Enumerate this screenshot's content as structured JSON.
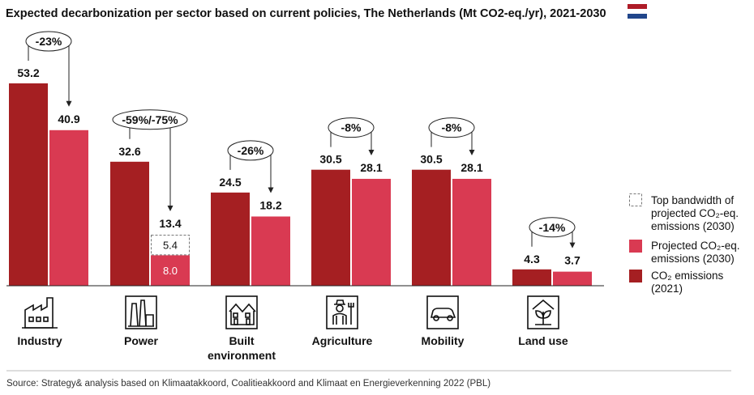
{
  "colors": {
    "current": "#a51f22",
    "projected": "#d93a52",
    "bandwidth_border": "#777777",
    "icon": "#111111",
    "flag_red": "#ae1c28",
    "flag_white": "#ffffff",
    "flag_blue": "#21468b"
  },
  "flag_icon": "netherlands-flag-icon",
  "chart_data": {
    "type": "bar",
    "title": "Expected decarbonization per sector based on current policies, The Netherlands (Mt CO2-eq./yr), 2021-2030",
    "categories": [
      {
        "label_lines": [
          "Industry"
        ],
        "icon": "factory-icon"
      },
      {
        "label_lines": [
          "Power"
        ],
        "icon": "power-plant-icon"
      },
      {
        "label_lines": [
          "Built",
          "environment"
        ],
        "icon": "houses-icon"
      },
      {
        "label_lines": [
          "Agriculture"
        ],
        "icon": "farmer-icon"
      },
      {
        "label_lines": [
          "Mobility"
        ],
        "icon": "car-icon"
      },
      {
        "label_lines": [
          "Land use"
        ],
        "icon": "plant-icon"
      }
    ],
    "series": [
      {
        "name": "CO2 emissions (2021)",
        "values": [
          53.2,
          32.6,
          24.5,
          30.5,
          30.5,
          4.3
        ]
      },
      {
        "name": "Projected CO2-eq. emissions (2030)",
        "values": [
          40.9,
          8.0,
          18.2,
          28.1,
          28.1,
          3.7
        ]
      },
      {
        "name": "Top bandwidth of projected CO2-eq. emissions (2030)",
        "values": [
          null,
          5.4,
          null,
          null,
          null,
          null
        ]
      }
    ],
    "value_labels_2021": [
      "53.2",
      "32.6",
      "24.5",
      "30.5",
      "30.5",
      "4.3"
    ],
    "value_labels_2030": [
      "40.9",
      "13.4",
      "18.2",
      "28.1",
      "28.1",
      "3.7"
    ],
    "power_inner_labels": {
      "bandwidth": "5.4",
      "projected": "8.0"
    },
    "changes": [
      "-23%",
      "-59%/-75%",
      "-26%",
      "-8%",
      "-8%",
      "-14%"
    ],
    "legend": [
      {
        "type": "bandwidth",
        "lines": [
          "Top bandwidth of",
          "projected CO₂-eq.",
          "emissions (2030)"
        ]
      },
      {
        "type": "projected",
        "lines": [
          "Projected CO₂-eq.",
          "emissions (2030)"
        ]
      },
      {
        "type": "current",
        "lines": [
          "CO₂ emissions",
          "(2021)"
        ]
      }
    ],
    "legend_position": "right",
    "ylim": [
      0,
      53.2
    ],
    "grid": false
  },
  "source": "Source: Strategy& analysis based on Klimaatakkoord, Coalitieakkoord and Klimaat en Energieverkenning 2022 (PBL)"
}
